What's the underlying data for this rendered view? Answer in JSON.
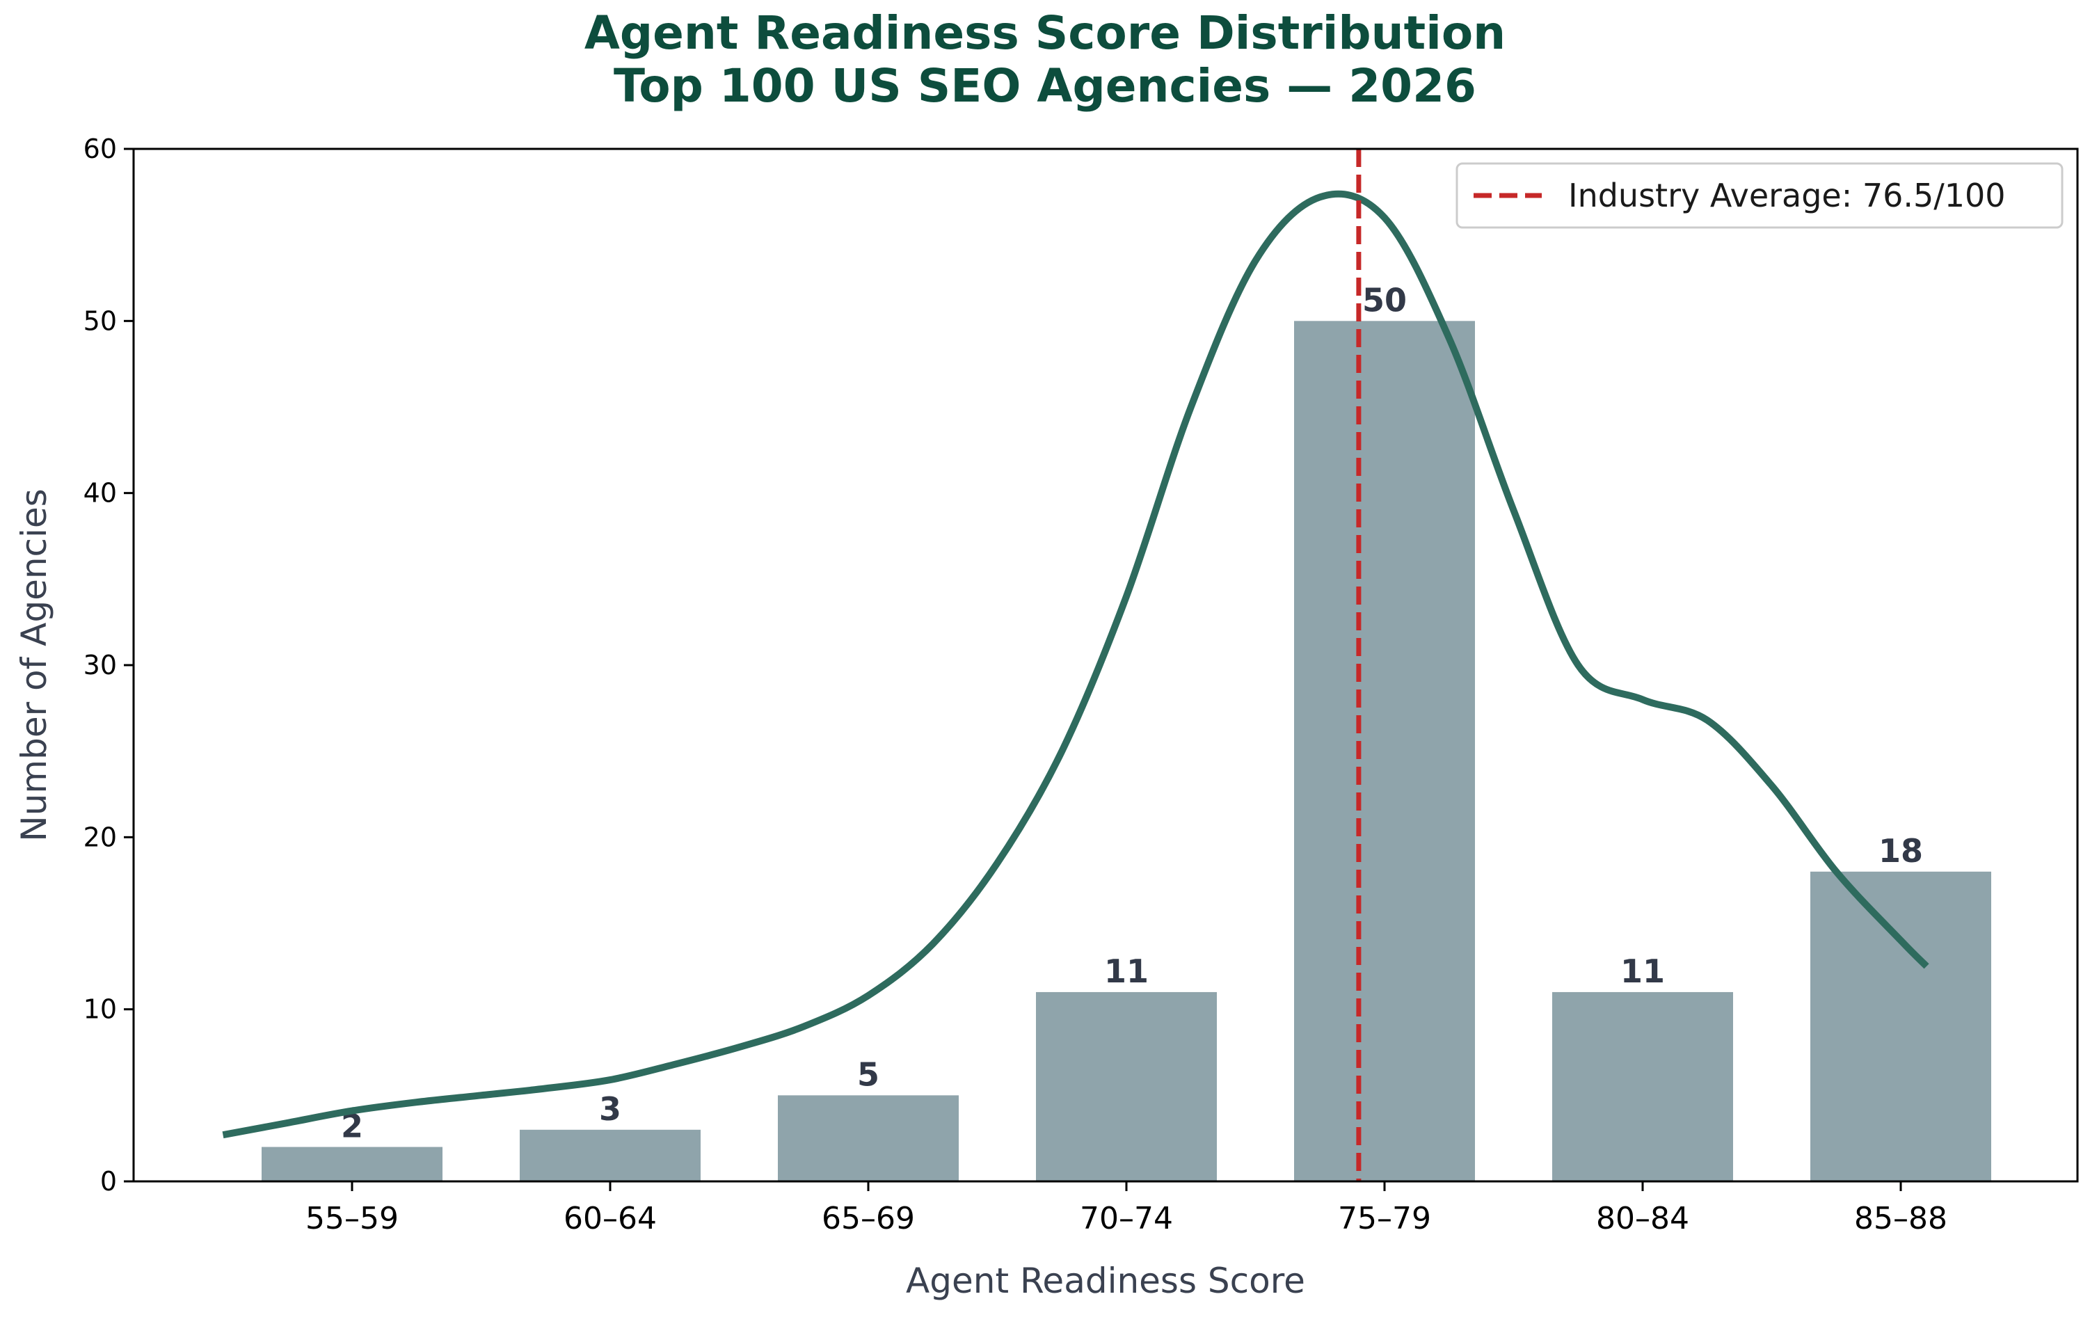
{
  "chart_data": {
    "type": "bar",
    "title_line1": "Agent Readiness Score Distribution",
    "title_line2": "Top 100 US SEO Agencies — 2026",
    "xlabel": "Agent Readiness Score",
    "ylabel": "Number of Agencies",
    "categories": [
      "55–59",
      "60–64",
      "65–69",
      "70–74",
      "75–79",
      "80–84",
      "85–88"
    ],
    "values": [
      2,
      3,
      5,
      11,
      50,
      11,
      18
    ],
    "ylim": [
      0,
      60
    ],
    "yticks": [
      0,
      10,
      20,
      30,
      40,
      50,
      60
    ],
    "grid": false,
    "legend_position": "top-right",
    "reference_line": {
      "label": "Industry Average: 76.5/100",
      "score": 76.5
    },
    "density_curve": {
      "x": [
        -0.5,
        -0.25,
        0,
        0.25,
        0.5,
        0.75,
        1,
        1.25,
        1.5,
        1.75,
        2,
        2.25,
        2.5,
        2.75,
        3,
        3.25,
        3.5,
        3.75,
        4,
        4.25,
        4.5,
        4.75,
        5,
        5.25,
        5.5,
        5.75,
        6,
        6.1
      ],
      "y": [
        2.7,
        3.4,
        4.1,
        4.6,
        5.0,
        5.4,
        5.9,
        6.8,
        7.8,
        9.0,
        10.8,
        13.8,
        18.5,
        25.0,
        34.0,
        45.0,
        53.5,
        57.2,
        56.0,
        49.0,
        39.0,
        30.0,
        28.0,
        26.8,
        23.0,
        18.0,
        14.0,
        12.5
      ]
    },
    "colors": {
      "bar": "#8fa4ab",
      "curve": "#2e6b5e",
      "reference_line": "#c62828",
      "title": "#0d4d3d",
      "axis_label": "#3a4150",
      "data_label": "#323948"
    }
  }
}
